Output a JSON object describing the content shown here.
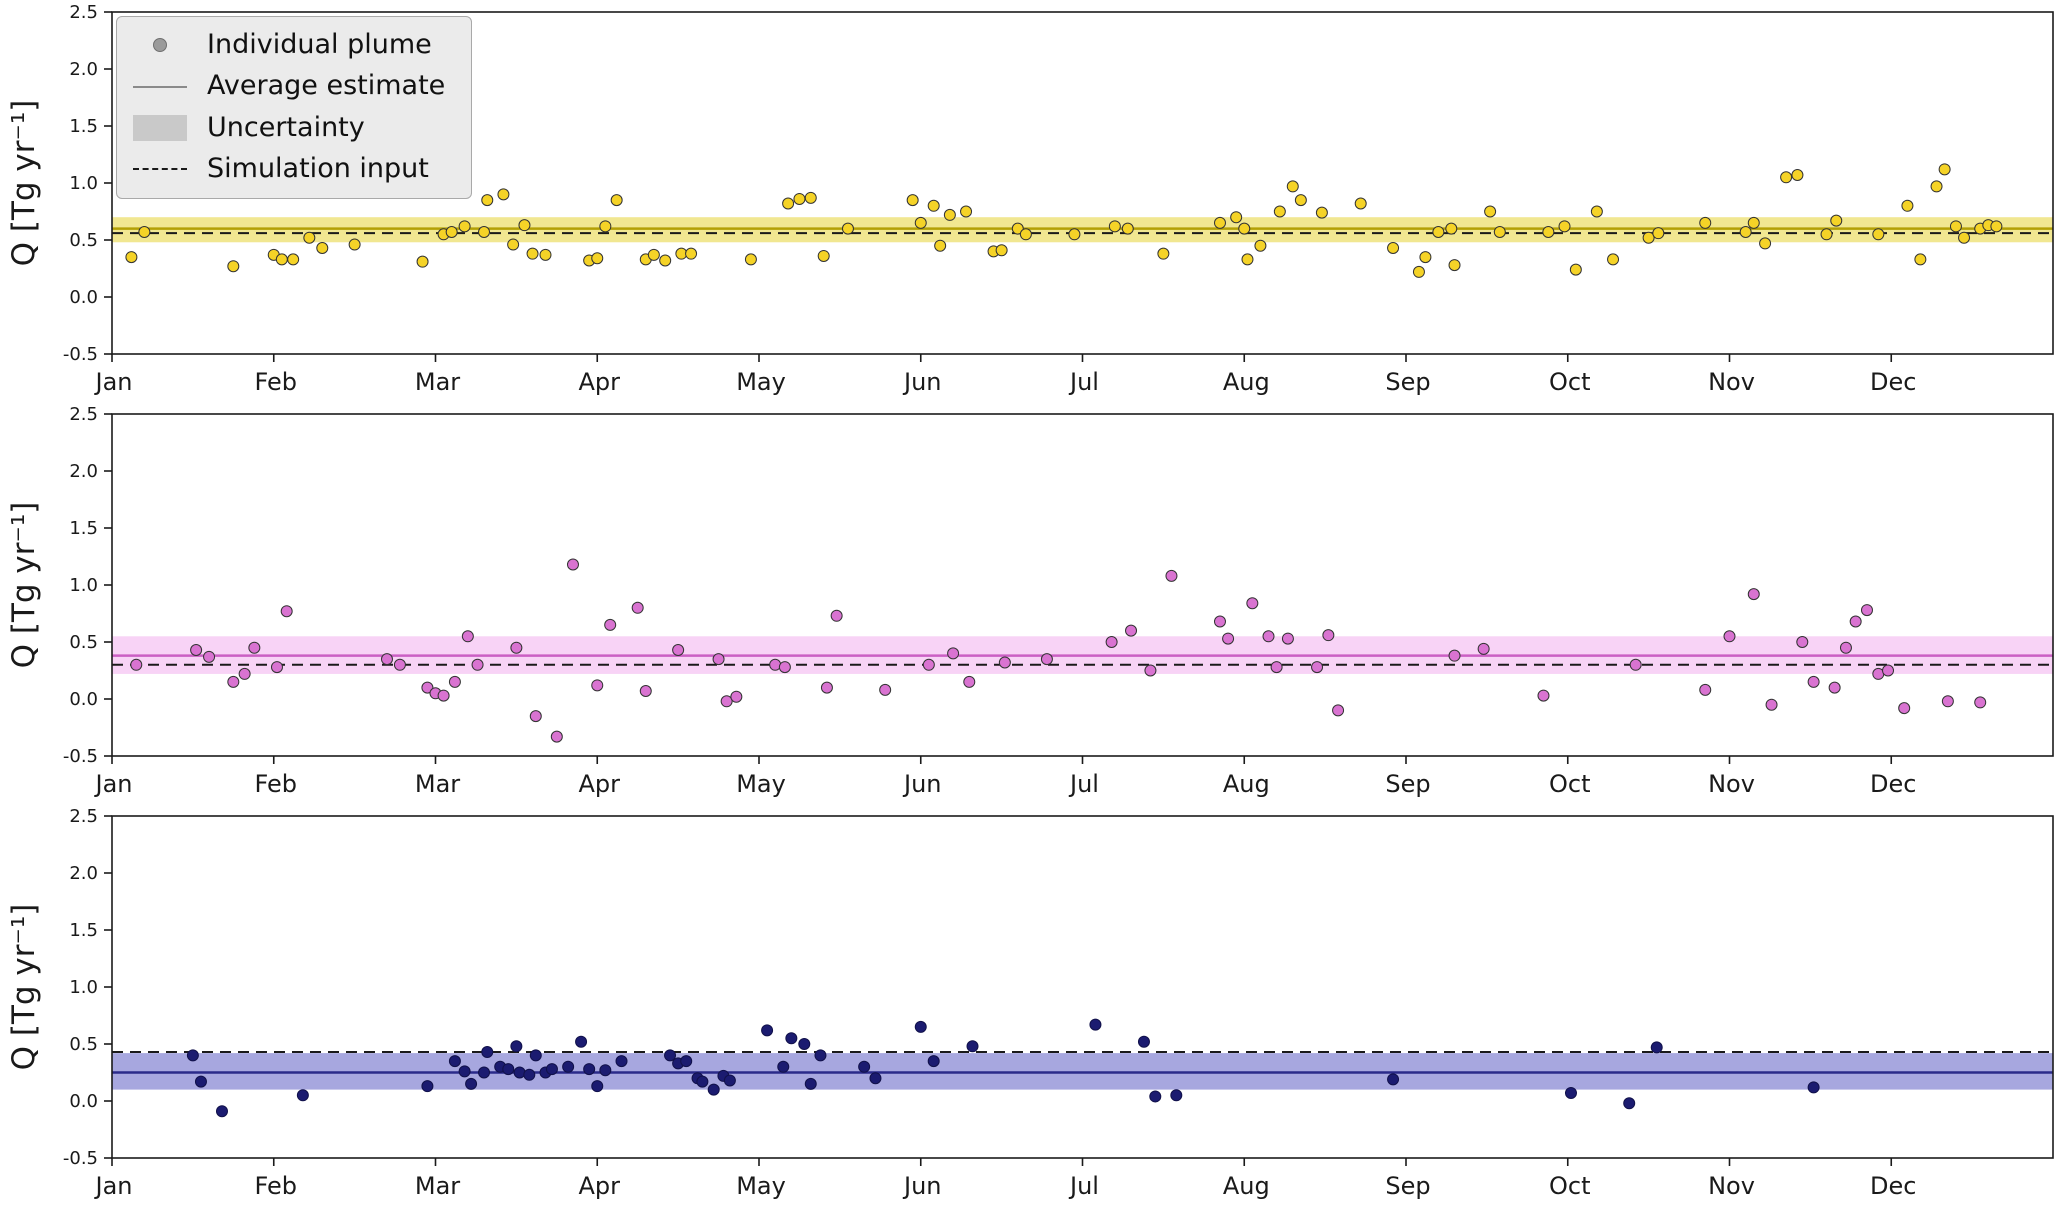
{
  "figure": {
    "ylabel": "Q [Tg yr⁻¹]",
    "x_tick_labels": [
      "Jan",
      "Feb",
      "Mar",
      "Apr",
      "May",
      "Jun",
      "Jul",
      "Aug",
      "Sep",
      "Oct",
      "Nov",
      "Dec"
    ],
    "y_tick_labels": [
      "-0.5",
      "0.0",
      "0.5",
      "1.0",
      "1.5",
      "2.0",
      "2.5"
    ]
  },
  "legend": {
    "items": [
      {
        "label": "Individual plume",
        "marker": "dot"
      },
      {
        "label": "Average estimate",
        "marker": "line"
      },
      {
        "label": "Uncertainty",
        "marker": "patch"
      },
      {
        "label": "Simulation input",
        "marker": "dashed"
      }
    ]
  },
  "chart_data": [
    {
      "type": "scatter",
      "name": "panel-top-yellow",
      "point_color": "#f5d327",
      "point_edge_color": "#333333",
      "band_color": "#e6d337",
      "band_opacity": 0.55,
      "avg_line_color": "#b3a005",
      "sim_line_color": "#1a1a1a",
      "average_estimate": 0.6,
      "uncertainty_range": [
        0.48,
        0.7
      ],
      "simulation_input": 0.56,
      "xlim": [
        0,
        12
      ],
      "ylim": [
        -0.5,
        2.5
      ],
      "y_ticks": [
        -0.5,
        0.0,
        0.5,
        1.0,
        1.5,
        2.0,
        2.5
      ],
      "points": [
        [
          0.12,
          0.35
        ],
        [
          0.2,
          0.57
        ],
        [
          0.75,
          0.27
        ],
        [
          1.0,
          0.37
        ],
        [
          1.05,
          0.33
        ],
        [
          1.12,
          0.33
        ],
        [
          1.22,
          0.52
        ],
        [
          1.3,
          0.43
        ],
        [
          1.5,
          0.46
        ],
        [
          1.92,
          0.31
        ],
        [
          2.05,
          0.55
        ],
        [
          2.1,
          0.57
        ],
        [
          2.18,
          0.62
        ],
        [
          2.3,
          0.57
        ],
        [
          2.32,
          0.85
        ],
        [
          2.42,
          0.9
        ],
        [
          2.48,
          0.46
        ],
        [
          2.55,
          0.63
        ],
        [
          2.6,
          0.38
        ],
        [
          2.68,
          0.37
        ],
        [
          2.95,
          0.32
        ],
        [
          3.0,
          0.34
        ],
        [
          3.05,
          0.62
        ],
        [
          3.12,
          0.85
        ],
        [
          3.3,
          0.33
        ],
        [
          3.35,
          0.37
        ],
        [
          3.42,
          0.32
        ],
        [
          3.52,
          0.38
        ],
        [
          3.58,
          0.38
        ],
        [
          3.95,
          0.33
        ],
        [
          4.18,
          0.82
        ],
        [
          4.25,
          0.86
        ],
        [
          4.32,
          0.87
        ],
        [
          4.4,
          0.36
        ],
        [
          4.55,
          0.6
        ],
        [
          4.95,
          0.85
        ],
        [
          5.0,
          0.65
        ],
        [
          5.08,
          0.8
        ],
        [
          5.12,
          0.45
        ],
        [
          5.18,
          0.72
        ],
        [
          5.28,
          0.75
        ],
        [
          5.45,
          0.4
        ],
        [
          5.5,
          0.41
        ],
        [
          5.6,
          0.6
        ],
        [
          5.65,
          0.55
        ],
        [
          5.95,
          0.55
        ],
        [
          6.2,
          0.62
        ],
        [
          6.28,
          0.6
        ],
        [
          6.5,
          0.38
        ],
        [
          6.85,
          0.65
        ],
        [
          6.95,
          0.7
        ],
        [
          7.0,
          0.6
        ],
        [
          7.02,
          0.33
        ],
        [
          7.1,
          0.45
        ],
        [
          7.22,
          0.75
        ],
        [
          7.3,
          0.97
        ],
        [
          7.35,
          0.85
        ],
        [
          7.48,
          0.74
        ],
        [
          7.72,
          0.82
        ],
        [
          7.92,
          0.43
        ],
        [
          8.08,
          0.22
        ],
        [
          8.12,
          0.35
        ],
        [
          8.2,
          0.57
        ],
        [
          8.28,
          0.6
        ],
        [
          8.3,
          0.28
        ],
        [
          8.52,
          0.75
        ],
        [
          8.58,
          0.57
        ],
        [
          8.88,
          0.57
        ],
        [
          8.98,
          0.62
        ],
        [
          9.05,
          0.24
        ],
        [
          9.18,
          0.75
        ],
        [
          9.28,
          0.33
        ],
        [
          9.5,
          0.52
        ],
        [
          9.56,
          0.56
        ],
        [
          9.85,
          0.65
        ],
        [
          10.1,
          0.57
        ],
        [
          10.15,
          0.65
        ],
        [
          10.22,
          0.47
        ],
        [
          10.35,
          1.05
        ],
        [
          10.42,
          1.07
        ],
        [
          10.6,
          0.55
        ],
        [
          10.66,
          0.67
        ],
        [
          10.92,
          0.55
        ],
        [
          11.1,
          0.8
        ],
        [
          11.18,
          0.33
        ],
        [
          11.28,
          0.97
        ],
        [
          11.33,
          1.12
        ],
        [
          11.4,
          0.62
        ],
        [
          11.45,
          0.52
        ],
        [
          11.55,
          0.6
        ],
        [
          11.6,
          0.63
        ],
        [
          11.65,
          0.62
        ]
      ]
    },
    {
      "type": "scatter",
      "name": "panel-middle-pink",
      "point_color": "#d973d1",
      "point_edge_color": "#333333",
      "band_color": "#f2a7ee",
      "band_opacity": 0.5,
      "avg_line_color": "#cb5fc4",
      "sim_line_color": "#1a1a1a",
      "average_estimate": 0.38,
      "uncertainty_range": [
        0.22,
        0.55
      ],
      "simulation_input": 0.3,
      "xlim": [
        0,
        12
      ],
      "ylim": [
        -0.5,
        2.5
      ],
      "y_ticks": [
        -0.5,
        0.0,
        0.5,
        1.0,
        1.5,
        2.0,
        2.5
      ],
      "points": [
        [
          0.15,
          0.3
        ],
        [
          0.52,
          0.43
        ],
        [
          0.6,
          0.37
        ],
        [
          0.75,
          0.15
        ],
        [
          0.82,
          0.22
        ],
        [
          0.88,
          0.45
        ],
        [
          1.02,
          0.28
        ],
        [
          1.08,
          0.77
        ],
        [
          1.7,
          0.35
        ],
        [
          1.78,
          0.3
        ],
        [
          1.95,
          0.1
        ],
        [
          2.0,
          0.05
        ],
        [
          2.05,
          0.03
        ],
        [
          2.12,
          0.15
        ],
        [
          2.2,
          0.55
        ],
        [
          2.26,
          0.3
        ],
        [
          2.5,
          0.45
        ],
        [
          2.62,
          -0.15
        ],
        [
          2.75,
          -0.33
        ],
        [
          2.85,
          1.18
        ],
        [
          3.0,
          0.12
        ],
        [
          3.08,
          0.65
        ],
        [
          3.25,
          0.8
        ],
        [
          3.3,
          0.07
        ],
        [
          3.5,
          0.43
        ],
        [
          3.75,
          0.35
        ],
        [
          3.8,
          -0.02
        ],
        [
          3.86,
          0.02
        ],
        [
          4.1,
          0.3
        ],
        [
          4.16,
          0.28
        ],
        [
          4.42,
          0.1
        ],
        [
          4.48,
          0.73
        ],
        [
          4.78,
          0.08
        ],
        [
          5.05,
          0.3
        ],
        [
          5.2,
          0.4
        ],
        [
          5.3,
          0.15
        ],
        [
          5.52,
          0.32
        ],
        [
          5.78,
          0.35
        ],
        [
          6.18,
          0.5
        ],
        [
          6.3,
          0.6
        ],
        [
          6.42,
          0.25
        ],
        [
          6.55,
          1.08
        ],
        [
          6.85,
          0.68
        ],
        [
          6.9,
          0.53
        ],
        [
          7.05,
          0.84
        ],
        [
          7.15,
          0.55
        ],
        [
          7.2,
          0.28
        ],
        [
          7.27,
          0.53
        ],
        [
          7.45,
          0.28
        ],
        [
          7.52,
          0.56
        ],
        [
          7.58,
          -0.1
        ],
        [
          8.3,
          0.38
        ],
        [
          8.48,
          0.44
        ],
        [
          8.85,
          0.03
        ],
        [
          9.42,
          0.3
        ],
        [
          9.85,
          0.08
        ],
        [
          10.0,
          0.55
        ],
        [
          10.15,
          0.92
        ],
        [
          10.26,
          -0.05
        ],
        [
          10.45,
          0.5
        ],
        [
          10.52,
          0.15
        ],
        [
          10.65,
          0.1
        ],
        [
          10.72,
          0.45
        ],
        [
          10.78,
          0.68
        ],
        [
          10.85,
          0.78
        ],
        [
          10.92,
          0.22
        ],
        [
          10.98,
          0.25
        ],
        [
          11.08,
          -0.08
        ],
        [
          11.35,
          -0.02
        ],
        [
          11.55,
          -0.03
        ]
      ]
    },
    {
      "type": "scatter",
      "name": "panel-bottom-blue",
      "point_color": "#1b1b70",
      "point_edge_color": "#11114a",
      "band_color": "#5f5fc4",
      "band_opacity": 0.55,
      "avg_line_color": "#2a2a8a",
      "sim_line_color": "#1a1a1a",
      "average_estimate": 0.25,
      "uncertainty_range": [
        0.1,
        0.42
      ],
      "simulation_input": 0.43,
      "xlim": [
        0,
        12
      ],
      "ylim": [
        -0.5,
        2.5
      ],
      "y_ticks": [
        -0.5,
        0.0,
        0.5,
        1.0,
        1.5,
        2.0,
        2.5
      ],
      "points": [
        [
          0.5,
          0.4
        ],
        [
          0.55,
          0.17
        ],
        [
          0.68,
          -0.09
        ],
        [
          1.18,
          0.05
        ],
        [
          1.95,
          0.13
        ],
        [
          2.12,
          0.35
        ],
        [
          2.18,
          0.26
        ],
        [
          2.22,
          0.15
        ],
        [
          2.3,
          0.25
        ],
        [
          2.32,
          0.43
        ],
        [
          2.4,
          0.3
        ],
        [
          2.45,
          0.28
        ],
        [
          2.5,
          0.48
        ],
        [
          2.52,
          0.25
        ],
        [
          2.58,
          0.23
        ],
        [
          2.62,
          0.4
        ],
        [
          2.68,
          0.25
        ],
        [
          2.72,
          0.28
        ],
        [
          2.82,
          0.3
        ],
        [
          2.9,
          0.52
        ],
        [
          2.95,
          0.28
        ],
        [
          3.0,
          0.13
        ],
        [
          3.05,
          0.27
        ],
        [
          3.15,
          0.35
        ],
        [
          3.45,
          0.4
        ],
        [
          3.5,
          0.33
        ],
        [
          3.55,
          0.35
        ],
        [
          3.62,
          0.2
        ],
        [
          3.65,
          0.17
        ],
        [
          3.72,
          0.1
        ],
        [
          3.78,
          0.22
        ],
        [
          3.82,
          0.18
        ],
        [
          4.05,
          0.62
        ],
        [
          4.15,
          0.3
        ],
        [
          4.2,
          0.55
        ],
        [
          4.28,
          0.5
        ],
        [
          4.32,
          0.15
        ],
        [
          4.38,
          0.4
        ],
        [
          4.65,
          0.3
        ],
        [
          4.72,
          0.2
        ],
        [
          5.0,
          0.65
        ],
        [
          5.08,
          0.35
        ],
        [
          5.32,
          0.48
        ],
        [
          6.08,
          0.67
        ],
        [
          6.38,
          0.52
        ],
        [
          6.45,
          0.04
        ],
        [
          6.58,
          0.05
        ],
        [
          7.92,
          0.19
        ],
        [
          9.02,
          0.07
        ],
        [
          9.38,
          -0.02
        ],
        [
          9.55,
          0.47
        ],
        [
          10.52,
          0.12
        ]
      ]
    }
  ]
}
